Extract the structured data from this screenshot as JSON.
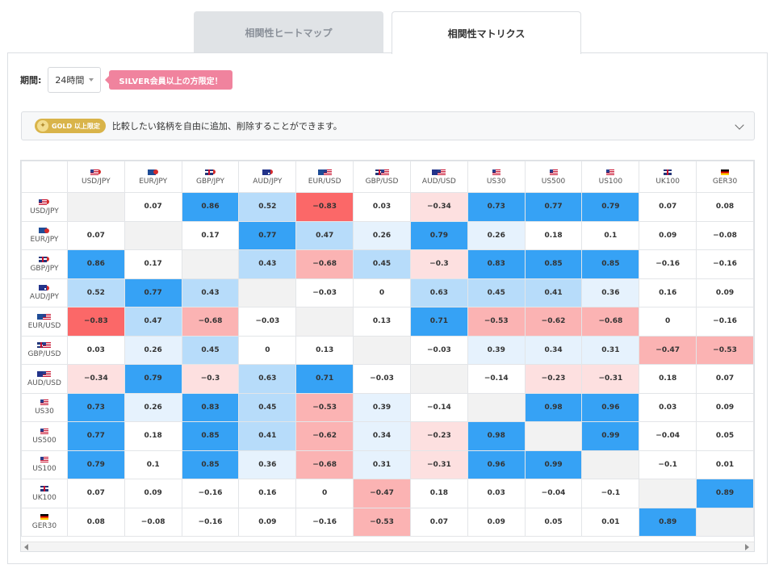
{
  "tabs": [
    {
      "label": "相関性ヒートマップ"
    },
    {
      "label": "相関性マトリクス"
    }
  ],
  "period": {
    "label": "期間:",
    "value": "24時間",
    "badge": "SILVER会員以上の方限定！"
  },
  "gold": {
    "badge": "GOLD 以上限定",
    "text": "比較したい銘柄を自由に追加、削除することができます。"
  },
  "symbols": [
    {
      "name": "USD/JPY",
      "flag": "us",
      "flag2": "jp"
    },
    {
      "name": "EUR/JPY",
      "flag": "eu",
      "flag2": "jp"
    },
    {
      "name": "GBP/JPY",
      "flag": "gb",
      "flag2": "jp"
    },
    {
      "name": "AUD/JPY",
      "flag": "au",
      "flag2": "jp"
    },
    {
      "name": "EUR/USD",
      "flag": "eu",
      "flag2": "us"
    },
    {
      "name": "GBP/USD",
      "flag": "gb",
      "flag2": "us"
    },
    {
      "name": "AUD/USD",
      "flag": "au",
      "flag2": "us"
    },
    {
      "name": "US30",
      "flag": "us",
      "flag2": ""
    },
    {
      "name": "US500",
      "flag": "us",
      "flag2": ""
    },
    {
      "name": "US100",
      "flag": "us",
      "flag2": ""
    },
    {
      "name": "UK100",
      "flag": "gb",
      "flag2": ""
    },
    {
      "name": "GER30",
      "flag": "de",
      "flag2": ""
    }
  ],
  "matrix": [
    [
      null,
      "0.07",
      "0.86",
      "0.52",
      "-0.83",
      "0.03",
      "-0.34",
      "0.73",
      "0.77",
      "0.79",
      "0.07",
      "0.08"
    ],
    [
      "0.07",
      null,
      "0.17",
      "0.77",
      "0.47",
      "0.26",
      "0.79",
      "0.26",
      "0.18",
      "0.1",
      "0.09",
      "-0.08"
    ],
    [
      "0.86",
      "0.17",
      null,
      "0.43",
      "-0.68",
      "0.45",
      "-0.3",
      "0.83",
      "0.85",
      "0.85",
      "-0.16",
      "-0.16"
    ],
    [
      "0.52",
      "0.77",
      "0.43",
      null,
      "-0.03",
      "0",
      "0.63",
      "0.45",
      "0.41",
      "0.36",
      "0.16",
      "0.09"
    ],
    [
      "-0.83",
      "0.47",
      "-0.68",
      "-0.03",
      null,
      "0.13",
      "0.71",
      "-0.53",
      "-0.62",
      "-0.68",
      "0",
      "-0.16"
    ],
    [
      "0.03",
      "0.26",
      "0.45",
      "0",
      "0.13",
      null,
      "-0.03",
      "0.39",
      "0.34",
      "0.31",
      "-0.47",
      "-0.53"
    ],
    [
      "-0.34",
      "0.79",
      "-0.3",
      "0.63",
      "0.71",
      "-0.03",
      null,
      "-0.14",
      "-0.23",
      "-0.31",
      "0.18",
      "0.07"
    ],
    [
      "0.73",
      "0.26",
      "0.83",
      "0.45",
      "-0.53",
      "0.39",
      "-0.14",
      null,
      "0.98",
      "0.96",
      "0.03",
      "0.09"
    ],
    [
      "0.77",
      "0.18",
      "0.85",
      "0.41",
      "-0.62",
      "0.34",
      "-0.23",
      "0.98",
      null,
      "0.99",
      "-0.04",
      "0.05"
    ],
    [
      "0.79",
      "0.1",
      "0.85",
      "0.36",
      "-0.68",
      "0.31",
      "-0.31",
      "0.96",
      "0.99",
      null,
      "-0.1",
      "0.01"
    ],
    [
      "0.07",
      "0.09",
      "-0.16",
      "0.16",
      "0",
      "-0.47",
      "0.18",
      "0.03",
      "-0.04",
      "-0.1",
      null,
      "0.89"
    ],
    [
      "0.08",
      "-0.08",
      "-0.16",
      "0.09",
      "-0.16",
      "-0.53",
      "0.07",
      "0.09",
      "0.05",
      "0.01",
      "0.89",
      null
    ]
  ],
  "colors": {
    "strong_pos": "#36a2f5",
    "mid_pos": "#b7dcfa",
    "weak_pos": "#e6f2fd",
    "strong_neg": "#fb6868",
    "mid_neg": "#fbb3b3",
    "weak_neg": "#fde0e0",
    "neutral": "#ffffff",
    "diagonal": "#f2f2f2"
  }
}
